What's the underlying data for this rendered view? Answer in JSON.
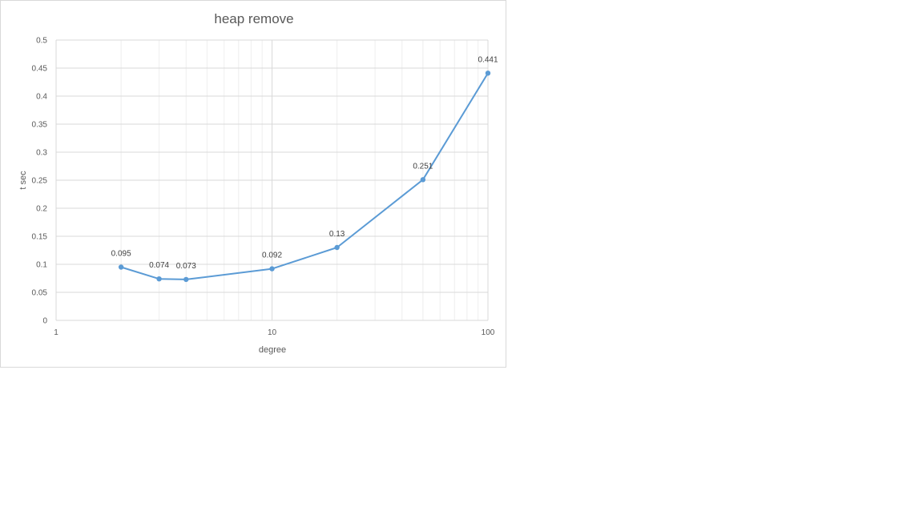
{
  "chart_data": {
    "type": "line",
    "title": "heap remove",
    "xlabel": "degree",
    "ylabel": "t sec",
    "x_scale": "log",
    "xlim": [
      1,
      100
    ],
    "ylim": [
      0,
      0.5
    ],
    "x_ticks": [
      "1",
      "10",
      "100"
    ],
    "y_ticks": [
      "0",
      "0.05",
      "0.1",
      "0.15",
      "0.2",
      "0.25",
      "0.3",
      "0.35",
      "0.4",
      "0.45",
      "0.5"
    ],
    "grid": true,
    "legend": "none",
    "series": [
      {
        "x": [
          2,
          3,
          4,
          10,
          20,
          50,
          100
        ],
        "y": [
          0.095,
          0.074,
          0.073,
          0.092,
          0.13,
          0.251,
          0.441
        ],
        "labels": [
          "0.095",
          "0.074",
          "0.073",
          "0.092",
          "0.13",
          "0.251",
          "0.441"
        ]
      }
    ],
    "colors": {
      "line": "#5b9bd5",
      "grid_major": "#d9d9d9",
      "grid_minor": "#eeeeee",
      "text": "#595959"
    }
  }
}
